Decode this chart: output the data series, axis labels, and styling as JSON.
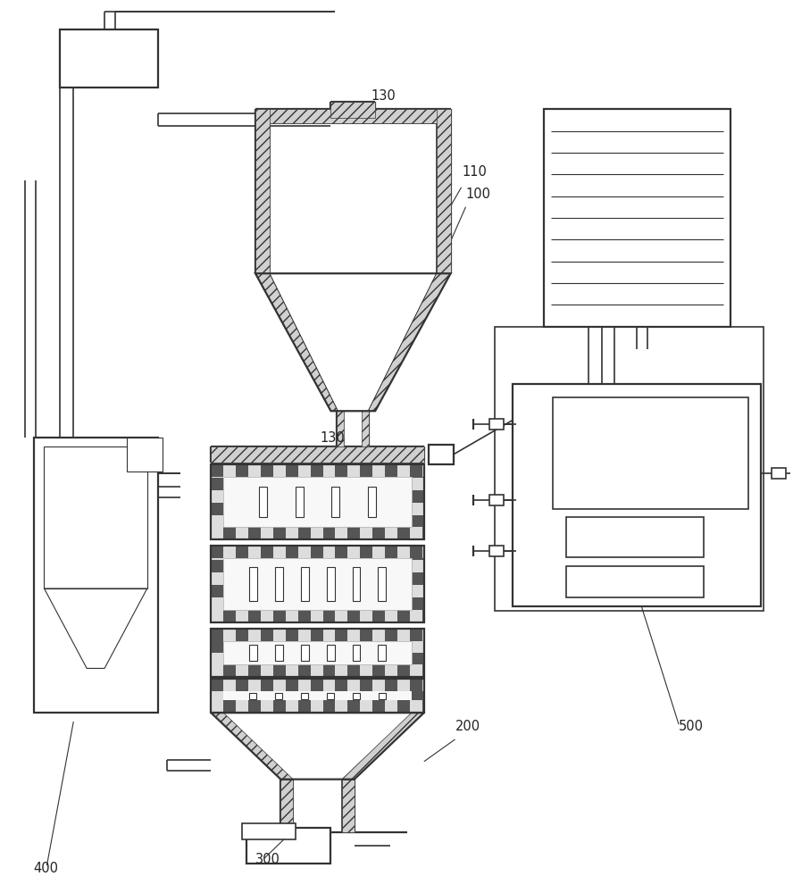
{
  "bg_color": "#ffffff",
  "lc": "#333333",
  "lw": 1.2,
  "lw2": 1.6,
  "label_fs": 10.5,
  "label_color": "#222222",
  "figsize": [
    8.88,
    10.0
  ],
  "dpi": 100
}
